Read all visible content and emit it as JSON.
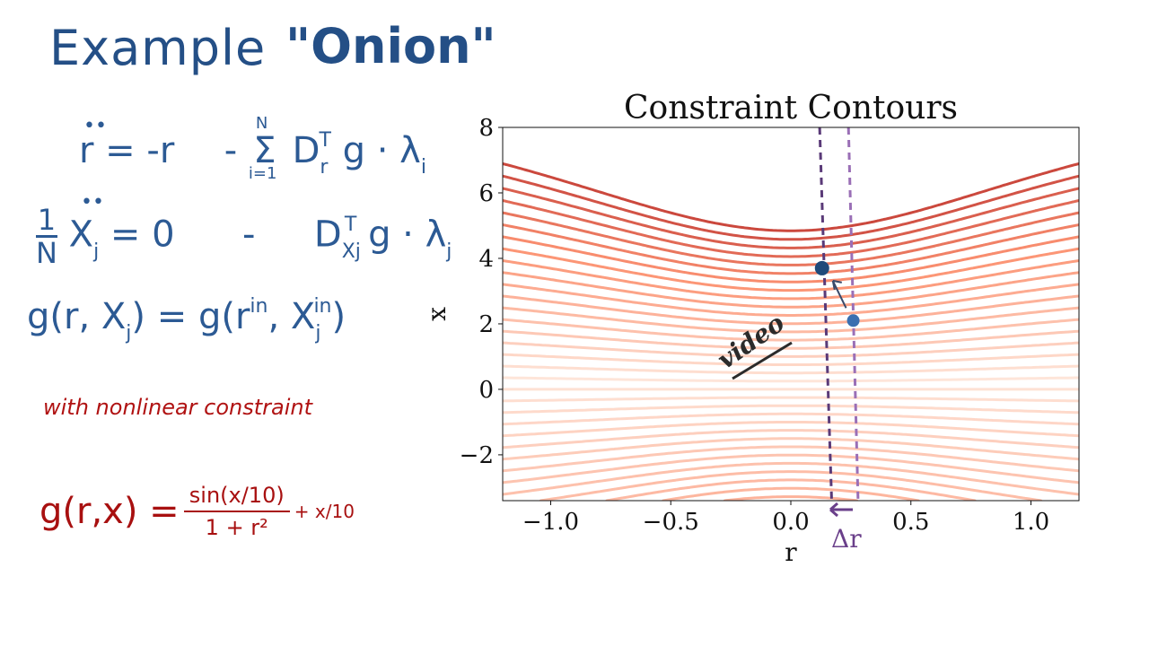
{
  "heading": {
    "title": "Example",
    "quoted": "\"Onion\""
  },
  "equations": {
    "eq1": {
      "lhs": "r",
      "mid": "= -r",
      "minus": "-",
      "sum": "Σ",
      "sum_top": "N",
      "sum_bottom": "i=1",
      "term": "D",
      "term_sub": "r",
      "term_sup": "T",
      "rest": "g · λ",
      "rest_sub": "i"
    },
    "eq2": {
      "frac_num": "1",
      "frac_den": "N",
      "var": "X",
      "var_sub": "j",
      "mid": "= 0",
      "minus": "-",
      "term": "D",
      "term_sub": "Xj",
      "term_sup": "T",
      "rest": "g · λ",
      "rest_sub": "j"
    },
    "eq3": {
      "text_left": "g(r, X",
      "sub_left": "j",
      "text_mid": ") = g(r",
      "sup1": "in",
      "text_mid2": ", X",
      "sub2": "j",
      "sup2": "in",
      "text_right": ")"
    }
  },
  "note": "with nonlinear constraint",
  "constraint_eq": {
    "lhs": "g(r,x) =",
    "num": "sin(x/10)",
    "den": "1 + r²",
    "tail": "+ x/10"
  },
  "chart_data": {
    "type": "contour",
    "title": "Constraint Contours",
    "xlabel": "r",
    "ylabel": "x",
    "xlim": [
      -1.2,
      1.2
    ],
    "ylim": [
      -3.4,
      8.0
    ],
    "xticks": [
      -1.0,
      -0.5,
      0.0,
      0.5,
      1.0
    ],
    "xtick_labels": [
      "−1.0",
      "−0.5",
      "0.0",
      "0.5",
      "1.0"
    ],
    "yticks": [
      -2,
      0,
      2,
      4,
      6,
      8
    ],
    "ytick_labels": [
      "−2",
      "0",
      "2",
      "4",
      "6",
      "8"
    ],
    "function": "sin(x/10)/(1+r^2) + x/10",
    "levels_start": -0.7,
    "levels_step": 0.05,
    "levels_count": 34,
    "points": [
      {
        "name": "point-current",
        "r": 0.13,
        "x": 3.7,
        "color": "#1f4a7a"
      },
      {
        "name": "point-initial",
        "r": 0.26,
        "x": 2.1,
        "color": "#3a6fb0"
      }
    ],
    "dashed_lines": [
      {
        "name": "dashed-line-current",
        "r_top": 0.12,
        "r_bottom": 0.17
      },
      {
        "name": "dashed-line-initial",
        "r_top": 0.24,
        "r_bottom": 0.28
      }
    ],
    "annotations": {
      "video": "video",
      "delta_r": "Δr"
    }
  }
}
